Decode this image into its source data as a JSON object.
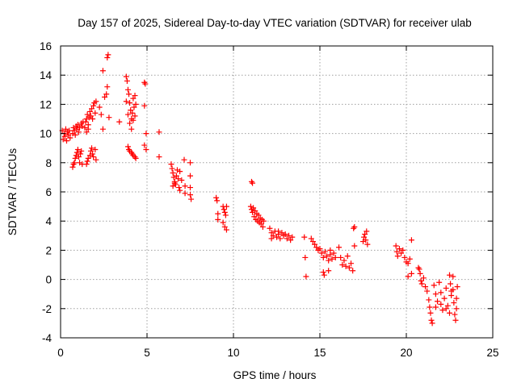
{
  "chart_data": {
    "type": "scatter",
    "title": "Day 157 of 2025, Sidereal Day-to-day VTEC variation (SDTVAR) for receiver ulab",
    "xlabel": "GPS time / hours",
    "ylabel": "SDTVAR / TECUs",
    "xlim": [
      0,
      25
    ],
    "ylim": [
      -4,
      16
    ],
    "xticks": [
      0,
      5,
      10,
      15,
      20,
      25
    ],
    "yticks": [
      -4,
      -2,
      0,
      2,
      4,
      6,
      8,
      10,
      12,
      14,
      16
    ],
    "xtick_labels": [
      "0",
      "5",
      "10",
      "15",
      "20",
      "25"
    ],
    "ytick_labels": [
      "-4",
      "-2",
      "0",
      "2",
      "4",
      "6",
      "8",
      "10",
      "12",
      "14",
      "16"
    ],
    "grid": true,
    "marker": "plus",
    "color": "#ff0000",
    "series": [
      {
        "name": "SDTVAR",
        "points": [
          [
            0.1,
            10.2
          ],
          [
            0.15,
            9.6
          ],
          [
            0.2,
            10.0
          ],
          [
            0.25,
            9.8
          ],
          [
            0.3,
            10.3
          ],
          [
            0.35,
            9.5
          ],
          [
            0.4,
            10.1
          ],
          [
            0.45,
            9.9
          ],
          [
            0.5,
            10.2
          ],
          [
            0.55,
            9.7
          ],
          [
            0.7,
            10.0
          ],
          [
            0.75,
            10.4
          ],
          [
            0.8,
            10.2
          ],
          [
            0.85,
            9.9
          ],
          [
            0.9,
            10.5
          ],
          [
            0.95,
            10.3
          ],
          [
            1.0,
            10.6
          ],
          [
            1.05,
            10.1
          ],
          [
            1.1,
            10.4
          ],
          [
            1.2,
            10.7
          ],
          [
            1.25,
            10.5
          ],
          [
            1.3,
            10.8
          ],
          [
            0.7,
            7.7
          ],
          [
            0.75,
            7.9
          ],
          [
            0.8,
            8.0
          ],
          [
            0.85,
            8.3
          ],
          [
            0.9,
            8.5
          ],
          [
            0.95,
            8.7
          ],
          [
            1.0,
            8.9
          ],
          [
            1.05,
            8.4
          ],
          [
            1.1,
            8.0
          ],
          [
            1.15,
            8.6
          ],
          [
            1.2,
            8.8
          ],
          [
            1.25,
            7.9
          ],
          [
            1.4,
            10.4
          ],
          [
            1.45,
            10.8
          ],
          [
            1.5,
            11.0
          ],
          [
            1.55,
            11.3
          ],
          [
            1.6,
            10.6
          ],
          [
            1.65,
            11.1
          ],
          [
            1.7,
            11.5
          ],
          [
            1.75,
            11.2
          ],
          [
            1.8,
            11.7
          ],
          [
            1.85,
            11.0
          ],
          [
            1.9,
            11.9
          ],
          [
            1.95,
            12.1
          ],
          [
            2.0,
            11.4
          ],
          [
            2.05,
            12.2
          ],
          [
            1.5,
            10.1
          ],
          [
            1.6,
            10.3
          ],
          [
            1.5,
            7.9
          ],
          [
            1.55,
            8.1
          ],
          [
            1.6,
            8.3
          ],
          [
            1.7,
            8.5
          ],
          [
            1.75,
            8.8
          ],
          [
            1.8,
            9.0
          ],
          [
            1.85,
            8.6
          ],
          [
            1.9,
            8.4
          ],
          [
            2.0,
            8.9
          ],
          [
            2.05,
            8.2
          ],
          [
            2.25,
            11.8
          ],
          [
            2.35,
            11.3
          ],
          [
            2.45,
            10.3
          ],
          [
            2.45,
            14.3
          ],
          [
            2.55,
            12.5
          ],
          [
            2.65,
            12.7
          ],
          [
            2.7,
            13.2
          ],
          [
            2.7,
            15.2
          ],
          [
            2.75,
            15.4
          ],
          [
            2.8,
            11.1
          ],
          [
            3.4,
            10.8
          ],
          [
            3.8,
            13.9
          ],
          [
            3.85,
            13.6
          ],
          [
            3.9,
            13.0
          ],
          [
            3.95,
            12.7
          ],
          [
            4.0,
            12.1
          ],
          [
            4.05,
            11.6
          ],
          [
            4.1,
            11.0
          ],
          [
            4.15,
            11.4
          ],
          [
            4.2,
            12.4
          ],
          [
            4.25,
            11.8
          ],
          [
            4.3,
            11.2
          ],
          [
            4.35,
            12.0
          ],
          [
            3.9,
            11.3
          ],
          [
            4.0,
            10.7
          ],
          [
            4.1,
            10.3
          ],
          [
            4.2,
            10.9
          ],
          [
            4.3,
            12.6
          ],
          [
            3.8,
            12.2
          ],
          [
            3.9,
            9.1
          ],
          [
            3.95,
            8.9
          ],
          [
            4.0,
            8.8
          ],
          [
            4.1,
            8.7
          ],
          [
            4.15,
            8.6
          ],
          [
            4.2,
            8.5
          ],
          [
            4.3,
            8.4
          ],
          [
            4.35,
            8.3
          ],
          [
            4.85,
            13.5
          ],
          [
            4.9,
            13.4
          ],
          [
            4.85,
            11.9
          ],
          [
            4.95,
            10.0
          ],
          [
            4.85,
            9.2
          ],
          [
            4.95,
            8.9
          ],
          [
            5.7,
            10.1
          ],
          [
            5.7,
            8.4
          ],
          [
            6.4,
            7.9
          ],
          [
            6.45,
            7.6
          ],
          [
            6.5,
            7.3
          ],
          [
            6.55,
            7.0
          ],
          [
            6.6,
            6.7
          ],
          [
            6.65,
            6.5
          ],
          [
            6.7,
            7.1
          ],
          [
            6.75,
            7.5
          ],
          [
            6.8,
            6.9
          ],
          [
            6.85,
            6.3
          ],
          [
            6.9,
            7.4
          ],
          [
            6.5,
            6.4
          ],
          [
            6.6,
            6.6
          ],
          [
            6.9,
            6.1
          ],
          [
            7.0,
            6.8
          ],
          [
            7.15,
            8.2
          ],
          [
            7.2,
            6.4
          ],
          [
            7.2,
            5.9
          ],
          [
            7.5,
            8.0
          ],
          [
            7.5,
            7.1
          ],
          [
            7.5,
            6.3
          ],
          [
            7.5,
            5.8
          ],
          [
            7.55,
            5.5
          ],
          [
            9.0,
            5.6
          ],
          [
            9.05,
            5.4
          ],
          [
            9.1,
            4.5
          ],
          [
            9.1,
            4.1
          ],
          [
            9.4,
            5.0
          ],
          [
            9.45,
            4.8
          ],
          [
            9.5,
            4.6
          ],
          [
            9.55,
            4.4
          ],
          [
            9.4,
            3.9
          ],
          [
            9.5,
            3.6
          ],
          [
            9.6,
            3.4
          ],
          [
            9.6,
            5.0
          ],
          [
            11.05,
            6.7
          ],
          [
            11.1,
            6.6
          ],
          [
            11.0,
            5.0
          ],
          [
            11.05,
            4.8
          ],
          [
            11.1,
            4.6
          ],
          [
            11.15,
            4.9
          ],
          [
            11.2,
            4.3
          ],
          [
            11.25,
            4.7
          ],
          [
            11.3,
            4.1
          ],
          [
            11.35,
            4.5
          ],
          [
            11.4,
            4.0
          ],
          [
            11.45,
            4.4
          ],
          [
            11.5,
            3.9
          ],
          [
            11.55,
            4.2
          ],
          [
            11.6,
            3.8
          ],
          [
            11.65,
            4.1
          ],
          [
            11.7,
            3.6
          ],
          [
            11.75,
            4.0
          ],
          [
            12.1,
            3.5
          ],
          [
            12.2,
            3.2
          ],
          [
            12.3,
            3.0
          ],
          [
            12.4,
            3.3
          ],
          [
            12.5,
            2.9
          ],
          [
            12.6,
            3.1
          ],
          [
            12.7,
            2.8
          ],
          [
            12.8,
            3.2
          ],
          [
            12.9,
            3.0
          ],
          [
            13.0,
            3.1
          ],
          [
            13.1,
            2.8
          ],
          [
            13.2,
            3.0
          ],
          [
            13.3,
            2.7
          ],
          [
            13.4,
            2.9
          ],
          [
            12.2,
            2.8
          ],
          [
            12.6,
            3.3
          ],
          [
            14.1,
            2.9
          ],
          [
            14.15,
            1.5
          ],
          [
            14.2,
            0.2
          ],
          [
            14.5,
            2.8
          ],
          [
            14.6,
            2.6
          ],
          [
            14.7,
            2.4
          ],
          [
            14.8,
            2.2
          ],
          [
            14.9,
            2.0
          ],
          [
            15.0,
            2.1
          ],
          [
            15.1,
            1.8
          ],
          [
            15.2,
            1.5
          ],
          [
            15.3,
            1.9
          ],
          [
            15.4,
            1.6
          ],
          [
            15.5,
            1.3
          ],
          [
            15.6,
            1.7
          ],
          [
            15.7,
            1.4
          ],
          [
            15.8,
            1.8
          ],
          [
            15.9,
            1.5
          ],
          [
            15.2,
            0.5
          ],
          [
            15.25,
            0.3
          ],
          [
            15.5,
            0.6
          ],
          [
            15.6,
            2.0
          ],
          [
            16.1,
            2.2
          ],
          [
            16.2,
            1.5
          ],
          [
            16.3,
            1.0
          ],
          [
            16.4,
            1.3
          ],
          [
            16.5,
            0.9
          ],
          [
            16.6,
            1.6
          ],
          [
            16.7,
            0.8
          ],
          [
            16.8,
            1.1
          ],
          [
            16.9,
            0.6
          ],
          [
            16.95,
            3.5
          ],
          [
            17.0,
            3.6
          ],
          [
            17.0,
            2.3
          ],
          [
            17.5,
            2.6
          ],
          [
            17.55,
            2.9
          ],
          [
            17.6,
            3.1
          ],
          [
            17.65,
            2.7
          ],
          [
            17.7,
            3.3
          ],
          [
            17.75,
            2.4
          ],
          [
            19.4,
            2.3
          ],
          [
            19.45,
            1.9
          ],
          [
            19.5,
            1.6
          ],
          [
            19.6,
            2.1
          ],
          [
            19.7,
            1.8
          ],
          [
            19.8,
            2.0
          ],
          [
            19.9,
            1.5
          ],
          [
            20.0,
            1.2
          ],
          [
            20.1,
            1.1
          ],
          [
            20.2,
            1.4
          ],
          [
            20.3,
            0.4
          ],
          [
            20.3,
            2.7
          ],
          [
            20.1,
            0.2
          ],
          [
            20.7,
            0.8
          ],
          [
            20.75,
            0.7
          ],
          [
            20.8,
            0.4
          ],
          [
            20.85,
            -0.1
          ],
          [
            20.9,
            -0.3
          ],
          [
            21.0,
            0.1
          ],
          [
            21.1,
            -0.5
          ],
          [
            21.2,
            -0.8
          ],
          [
            21.3,
            -1.4
          ],
          [
            21.35,
            -1.9
          ],
          [
            21.4,
            -2.3
          ],
          [
            21.45,
            -2.8
          ],
          [
            21.5,
            -3.0
          ],
          [
            21.6,
            -0.4
          ],
          [
            21.7,
            -1.0
          ],
          [
            21.8,
            -1.5
          ],
          [
            21.9,
            -0.2
          ],
          [
            22.0,
            -0.9
          ],
          [
            22.1,
            -2.1
          ],
          [
            22.2,
            -1.3
          ],
          [
            22.3,
            -0.6
          ],
          [
            22.4,
            -1.8
          ],
          [
            22.5,
            -2.3
          ],
          [
            22.6,
            -0.8
          ],
          [
            21.7,
            -1.9
          ],
          [
            22.0,
            -1.7
          ],
          [
            22.3,
            -2.0
          ],
          [
            22.5,
            0.3
          ],
          [
            22.55,
            -0.3
          ],
          [
            22.6,
            -1.1
          ],
          [
            22.7,
            -0.7
          ],
          [
            22.75,
            -1.6
          ],
          [
            22.8,
            -2.4
          ],
          [
            22.85,
            -2.8
          ],
          [
            22.9,
            -1.3
          ],
          [
            22.95,
            -0.5
          ],
          [
            22.7,
            0.2
          ],
          [
            22.9,
            -2.0
          ]
        ]
      }
    ]
  }
}
